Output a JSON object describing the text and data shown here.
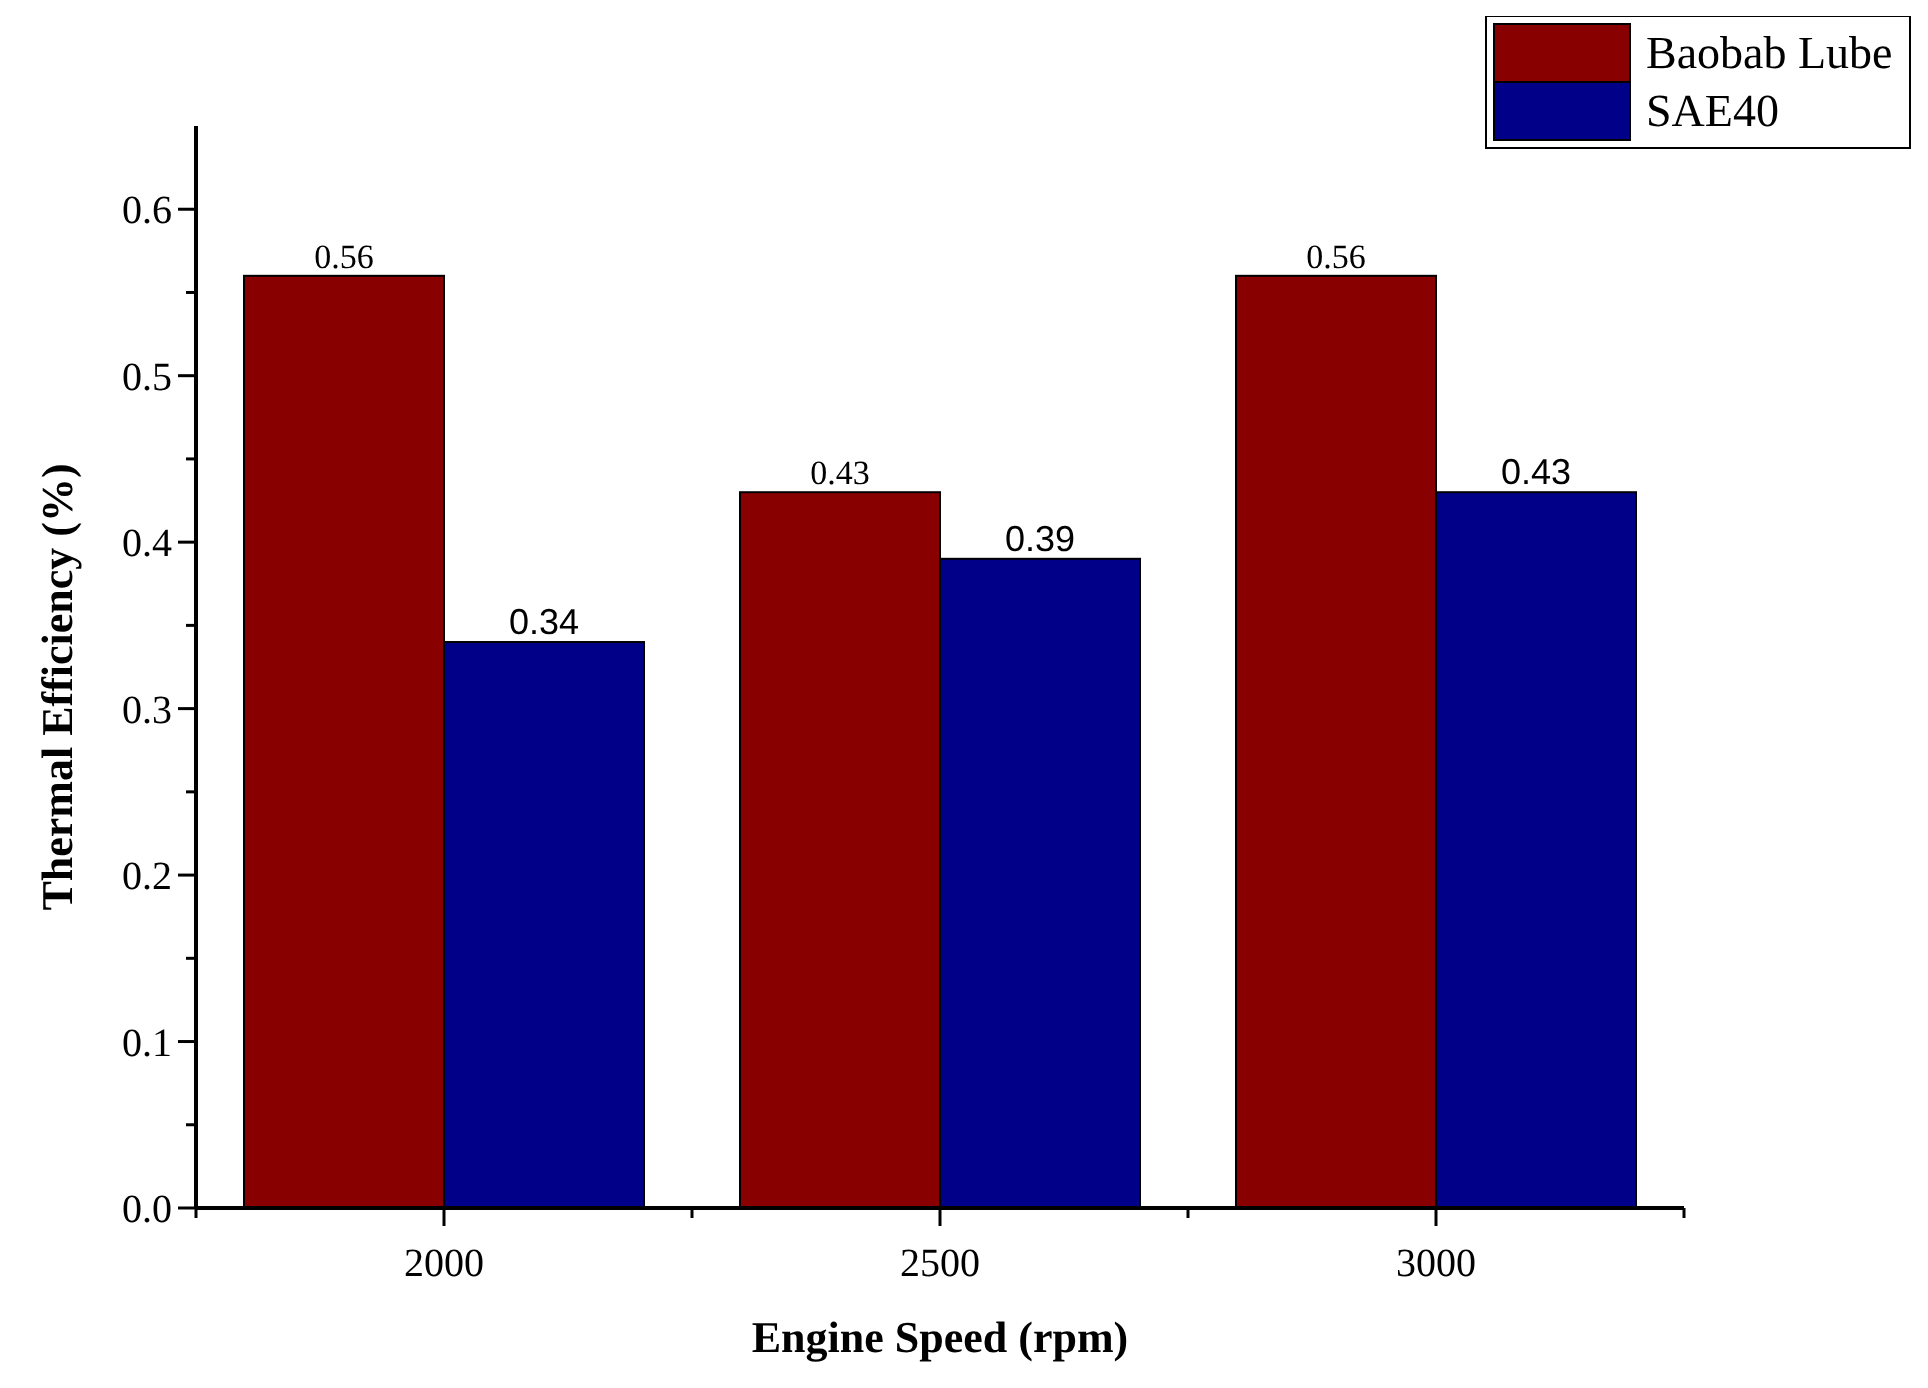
{
  "chart_data": {
    "type": "bar",
    "xlabel": "Engine Speed (rpm)",
    "ylabel": "Thermal Efficiency (%)",
    "categories": [
      "2000",
      "2500",
      "3000"
    ],
    "series": [
      {
        "name": "Baobab Lube",
        "color": "#880000",
        "values": [
          0.56,
          0.43,
          0.56
        ]
      },
      {
        "name": "SAE40",
        "color": "#000088",
        "values": [
          0.34,
          0.39,
          0.43
        ]
      }
    ],
    "ylim": [
      0,
      0.65
    ],
    "yticks": [
      {
        "value": 0,
        "label": "0.0"
      },
      {
        "value": 0.05,
        "label": null
      },
      0.1,
      {
        "value": 0.15,
        "label": null
      },
      0.2,
      {
        "value": 0.25,
        "label": null
      },
      0.3,
      {
        "value": 0.35,
        "label": null
      },
      0.4,
      {
        "value": 0.45,
        "label": null
      },
      0.5,
      {
        "value": 0.55,
        "label": null
      },
      0.6
    ],
    "data_labels": true,
    "legend": "top right",
    "grid": false
  }
}
